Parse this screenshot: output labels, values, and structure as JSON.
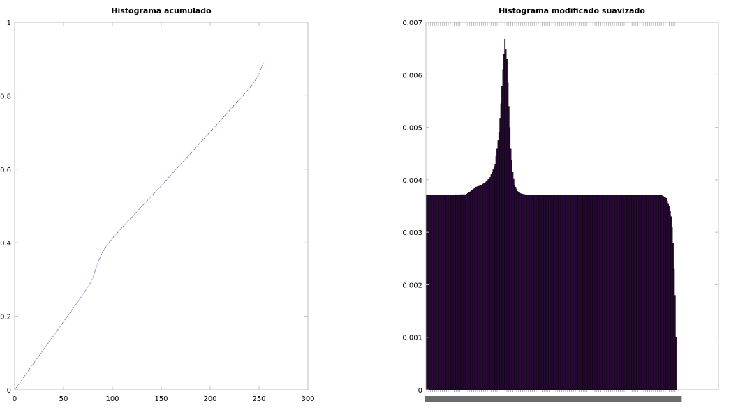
{
  "chart_data": [
    {
      "type": "line",
      "title": "Histograma acumulado",
      "xlabel": "",
      "ylabel": "",
      "xlim": [
        0,
        300
      ],
      "ylim": [
        0,
        1
      ],
      "xticks": [
        0,
        50,
        100,
        150,
        200,
        250,
        300
      ],
      "yticks": [
        0,
        0.2,
        0.4,
        0.6,
        0.8,
        1
      ],
      "xtick_labels": [
        "0",
        "50",
        "100",
        "150",
        "200",
        "250",
        "300"
      ],
      "ytick_labels": [
        "0",
        "0.2",
        "0.4",
        "0.6",
        "0.8",
        "1"
      ],
      "grid": false,
      "line_color": "#8080c0",
      "series": [
        {
          "x": [
            0,
            10,
            20,
            30,
            40,
            50,
            60,
            70,
            75,
            78,
            80,
            85,
            90,
            95,
            100,
            110,
            120,
            130,
            140,
            150,
            160,
            170,
            180,
            190,
            200,
            210,
            220,
            230,
            240,
            245,
            250,
            253,
            255
          ],
          "y": [
            0,
            0.037,
            0.074,
            0.111,
            0.148,
            0.185,
            0.222,
            0.26,
            0.28,
            0.293,
            0.305,
            0.345,
            0.375,
            0.396,
            0.412,
            0.442,
            0.47,
            0.499,
            0.527,
            0.555,
            0.585,
            0.614,
            0.643,
            0.673,
            0.702,
            0.731,
            0.761,
            0.79,
            0.82,
            0.837,
            0.86,
            0.88,
            0.892
          ]
        }
      ]
    },
    {
      "type": "bar",
      "title": "Histograma modificado suavizado",
      "xlabel": "",
      "ylabel": "",
      "ylim": [
        0,
        0.007
      ],
      "yticks": [
        0,
        0.001,
        0.002,
        0.003,
        0.004,
        0.005,
        0.006,
        0.007
      ],
      "ytick_labels": [
        "0",
        "0.001",
        "0.002",
        "0.003",
        "0.004",
        "0.005",
        "0.006",
        "0.007"
      ],
      "grid": false,
      "bar_color": "#2d0a3d",
      "bar_edge_color": "#000000",
      "categories_note": "256 bins, tick labels overlap",
      "categories_count": 256,
      "values_keypoints": {
        "bin": [
          0,
          40,
          45,
          50,
          55,
          60,
          65,
          70,
          74,
          76,
          78,
          80,
          82,
          84,
          86,
          88,
          90,
          93,
          96,
          100,
          110,
          130,
          240,
          245,
          248,
          250,
          251,
          252,
          253,
          254,
          255
        ],
        "value": [
          0.00371,
          0.00372,
          0.00378,
          0.00386,
          0.00389,
          0.00395,
          0.00405,
          0.0043,
          0.0049,
          0.00545,
          0.0061,
          0.00668,
          0.0063,
          0.0054,
          0.0046,
          0.00415,
          0.0039,
          0.00378,
          0.00374,
          0.00372,
          0.00371,
          0.00371,
          0.00371,
          0.00365,
          0.0035,
          0.0033,
          0.0031,
          0.0028,
          0.0023,
          0.0018,
          0.001
        ]
      }
    }
  ]
}
